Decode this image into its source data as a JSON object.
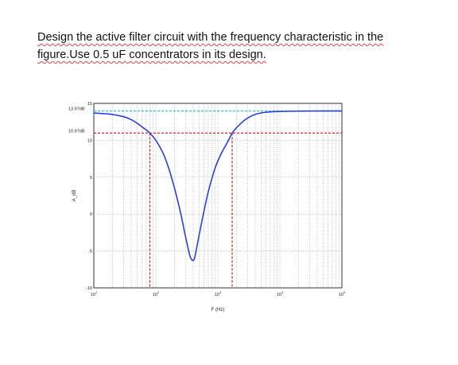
{
  "question": {
    "line1": "Design the active filter circuit with the frequency characteristic in the",
    "line2": "figure.Use 0.5 uF concentrators in its design."
  },
  "chart_data": {
    "type": "line",
    "xscale": "log",
    "xlim": [
      10,
      100000
    ],
    "ylim": [
      -10,
      15
    ],
    "xlabel": "F (Hz)",
    "ylabel": "A_dB",
    "grid": true,
    "x_ticks": [
      {
        "value": 10,
        "base": "10",
        "exp": "1"
      },
      {
        "value": 100,
        "base": "10",
        "exp": "2"
      },
      {
        "value": 1000,
        "base": "10",
        "exp": "3"
      },
      {
        "value": 10000,
        "base": "10",
        "exp": "4"
      },
      {
        "value": 100000,
        "base": "10",
        "exp": "5"
      }
    ],
    "y_ticks": [
      {
        "value": -10,
        "label": "-10"
      },
      {
        "value": -5,
        "label": "-5"
      },
      {
        "value": 0,
        "label": "0"
      },
      {
        "value": 5,
        "label": "5"
      },
      {
        "value": 10,
        "label": "10"
      },
      {
        "value": 15,
        "label": "15"
      }
    ],
    "annotations": [
      {
        "value": 13.97,
        "label": "13.97dB"
      },
      {
        "value": 10.97,
        "label": "10.97dB"
      }
    ],
    "reference_lines": [
      {
        "orientation": "horizontal",
        "y": 13.97,
        "color": "#33cccc",
        "style": "dashed"
      },
      {
        "orientation": "horizontal",
        "y": 10.97,
        "color": "#e0281e",
        "style": "dashed"
      },
      {
        "orientation": "vertical",
        "x": 80,
        "color": "#e0281e",
        "style": "dashed"
      },
      {
        "orientation": "vertical",
        "x": 1700,
        "color": "#e0281e",
        "style": "dashed"
      }
    ],
    "series": [
      {
        "color": "#2b3fe0",
        "x": [
          10,
          15,
          20,
          30,
          40,
          50,
          60,
          70,
          80,
          100,
          130,
          160,
          200,
          250,
          300,
          350,
          380,
          400,
          420,
          450,
          500,
          600,
          700,
          800,
          900,
          1000,
          1200,
          1400,
          1700,
          2000,
          2500,
          3000,
          4000,
          6000,
          10000,
          20000,
          50000,
          100000
        ],
        "y": [
          13.7,
          13.6,
          13.5,
          13.2,
          12.8,
          12.3,
          11.8,
          11.4,
          10.97,
          10.0,
          8.3,
          6.3,
          3.5,
          0.2,
          -3.0,
          -5.5,
          -6.2,
          -6.3,
          -6.0,
          -4.8,
          -2.8,
          0.5,
          3.0,
          4.8,
          6.2,
          7.2,
          8.6,
          9.6,
          10.97,
          11.7,
          12.5,
          13.0,
          13.5,
          13.8,
          13.9,
          13.95,
          13.97,
          13.97
        ]
      }
    ]
  }
}
